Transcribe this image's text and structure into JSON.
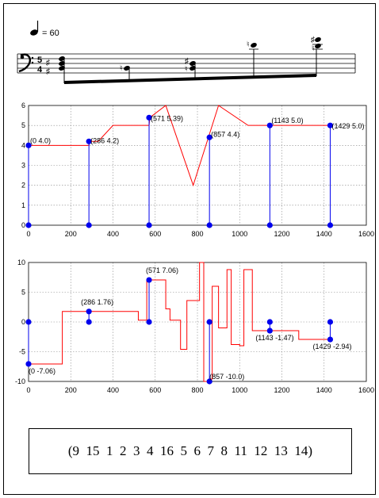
{
  "score": {
    "tempo_value": "= 60",
    "time_signature": {
      "top": "5",
      "bottom": "4"
    }
  },
  "chart_data": [
    {
      "type": "line",
      "xlim": [
        0,
        1600
      ],
      "ylim": [
        0,
        6
      ],
      "x_ticks": [
        0,
        200,
        400,
        600,
        800,
        1000,
        1200,
        1400,
        1600
      ],
      "y_ticks": [
        0,
        1,
        2,
        3,
        4,
        5,
        6
      ],
      "grid": true,
      "series": [
        {
          "name": "",
          "color": "#ff0000",
          "points": [
            [
              0,
              4.0
            ],
            [
              286,
              4.0
            ],
            [
              290,
              4.2
            ],
            [
              330,
              4.2
            ],
            [
              400,
              5.0
            ],
            [
              571,
              5.0
            ],
            [
              575,
              5.4
            ],
            [
              650,
              6.0
            ],
            [
              780,
              2.0
            ],
            [
              900,
              6.0
            ],
            [
              1040,
              5.0
            ],
            [
              1429,
              5.0
            ]
          ]
        }
      ],
      "stems": [
        {
          "x": 0,
          "y": 4.0,
          "label": "(0 4.0)"
        },
        {
          "x": 286,
          "y": 4.2,
          "label": "(286 4.2)"
        },
        {
          "x": 571,
          "y": 5.39,
          "label": "(571 5.39)"
        },
        {
          "x": 857,
          "y": 4.4,
          "label": "(857 4.4)"
        },
        {
          "x": 1143,
          "y": 5.0,
          "label": "(1143 5.0)"
        },
        {
          "x": 1429,
          "y": 5.0,
          "label": "(1429 5.0)"
        }
      ]
    },
    {
      "type": "line",
      "xlim": [
        0,
        1600
      ],
      "ylim": [
        -10,
        10
      ],
      "x_ticks": [
        0,
        200,
        400,
        600,
        800,
        1000,
        1200,
        1400,
        1600
      ],
      "y_ticks": [
        -10,
        -5,
        0,
        5,
        10
      ],
      "grid": true,
      "series": [
        {
          "name": "",
          "color": "#ff0000",
          "points": [
            [
              0,
              -7.06
            ],
            [
              160,
              -7.06
            ],
            [
              160,
              1.76
            ],
            [
              520,
              1.76
            ],
            [
              520,
              0.3
            ],
            [
              560,
              0.3
            ],
            [
              560,
              7.06
            ],
            [
              650,
              7.06
            ],
            [
              650,
              2.2
            ],
            [
              670,
              2.2
            ],
            [
              670,
              0.3
            ],
            [
              720,
              0.3
            ],
            [
              720,
              -4.6
            ],
            [
              750,
              -4.6
            ],
            [
              750,
              3.6
            ],
            [
              810,
              3.6
            ],
            [
              810,
              10
            ],
            [
              830,
              10
            ],
            [
              830,
              -10
            ],
            [
              857,
              -10
            ],
            [
              857,
              -9.6
            ],
            [
              870,
              -9.6
            ],
            [
              870,
              6.0
            ],
            [
              900,
              6.0
            ],
            [
              900,
              -1.0
            ],
            [
              940,
              -1.0
            ],
            [
              940,
              8.8
            ],
            [
              960,
              8.8
            ],
            [
              960,
              -3.8
            ],
            [
              1000,
              -3.8
            ],
            [
              1000,
              -4.0
            ],
            [
              1020,
              -4.0
            ],
            [
              1020,
              8.8
            ],
            [
              1060,
              8.8
            ],
            [
              1060,
              -1.47
            ],
            [
              1143,
              -1.47
            ],
            [
              1280,
              -1.47
            ],
            [
              1280,
              -2.94
            ],
            [
              1429,
              -2.94
            ]
          ]
        }
      ],
      "stems": [
        {
          "x": 0,
          "y": -7.06,
          "label": "(0 -7.06)"
        },
        {
          "x": 286,
          "y": 1.76,
          "label": "(286 1.76)"
        },
        {
          "x": 571,
          "y": 7.06,
          "label": "(571 7.06)"
        },
        {
          "x": 857,
          "y": -10.0,
          "label": "(857 -10.0)"
        },
        {
          "x": 1143,
          "y": -1.47,
          "label": "(1143 -1.47)"
        },
        {
          "x": 1429,
          "y": -2.94,
          "label": "(1429 -2.94)"
        }
      ]
    }
  ],
  "permutation": "(9  15  1  2  3  4  16  5  6  7  8  11  12  13  14)"
}
